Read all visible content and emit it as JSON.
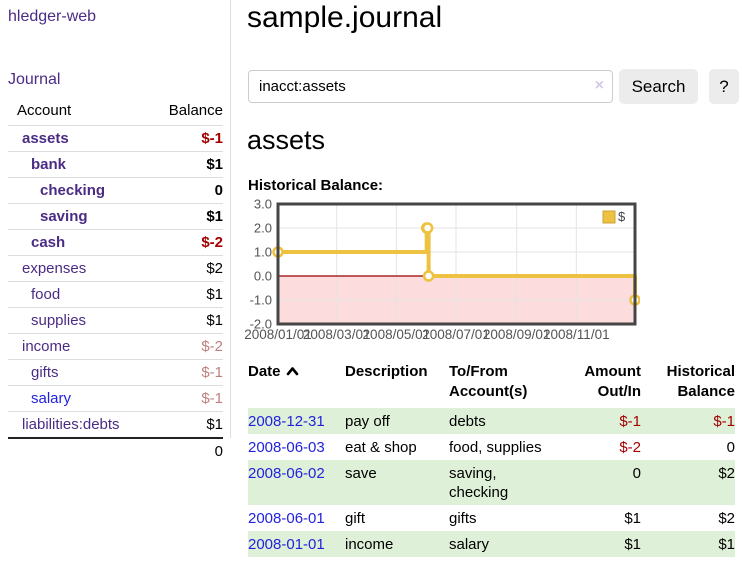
{
  "brand": "hledger-web",
  "nav": {
    "journal": "Journal"
  },
  "sidebar": {
    "header": {
      "account": "Account",
      "balance": "Balance"
    },
    "rows": [
      {
        "name": "assets",
        "balance": "$-1",
        "depth": 0,
        "bold": true,
        "balance_cls": "neg-strong",
        "link": "purple"
      },
      {
        "name": "bank",
        "balance": "$1",
        "depth": 1,
        "bold": true,
        "balance_cls": "",
        "link": "purple"
      },
      {
        "name": "checking",
        "balance": "0",
        "depth": 2,
        "bold": true,
        "balance_cls": "",
        "link": "purple"
      },
      {
        "name": "saving",
        "balance": "$1",
        "depth": 2,
        "bold": true,
        "balance_cls": "",
        "link": "purple"
      },
      {
        "name": "cash",
        "balance": "$-2",
        "depth": 1,
        "bold": true,
        "balance_cls": "neg-strong",
        "link": "purple"
      },
      {
        "name": "expenses",
        "balance": "$2",
        "depth": 0,
        "bold": false,
        "balance_cls": "",
        "link": "purple"
      },
      {
        "name": "food",
        "balance": "$1",
        "depth": 1,
        "bold": false,
        "balance_cls": "",
        "link": "purple"
      },
      {
        "name": "supplies",
        "balance": "$1",
        "depth": 1,
        "bold": false,
        "balance_cls": "",
        "link": "purple"
      },
      {
        "name": "income",
        "balance": "$-2",
        "depth": 0,
        "bold": false,
        "balance_cls": "neg-dim",
        "link": "purple"
      },
      {
        "name": "gifts",
        "balance": "$-1",
        "depth": 1,
        "bold": false,
        "balance_cls": "neg-dim",
        "link": "purple"
      },
      {
        "name": "salary",
        "balance": "$-1",
        "depth": 1,
        "bold": false,
        "balance_cls": "neg-dim",
        "link": "blue"
      },
      {
        "name": "liabilities:debts",
        "balance": "$1",
        "depth": 0,
        "bold": false,
        "balance_cls": "",
        "link": "purple"
      }
    ],
    "total": "0"
  },
  "page": {
    "title": "sample.journal",
    "account_heading": "assets",
    "chart_heading": "Historical Balance:"
  },
  "search": {
    "query": "inacct:assets",
    "clear": "×",
    "search_button": "Search",
    "help_button": "?"
  },
  "register": {
    "headers": {
      "date": "Date",
      "description": "Description",
      "accounts": [
        "To/From",
        "Account(s)"
      ],
      "amount": [
        "Amount",
        "Out/In"
      ],
      "balance": [
        "Historical",
        "Balance"
      ]
    },
    "rows": [
      {
        "date": "2008-12-31",
        "description": "pay off",
        "accounts": "debts",
        "amount": "$-1",
        "amount_cls": "neg",
        "balance": "$-1",
        "balance_cls": "neg"
      },
      {
        "date": "2008-06-03",
        "description": "eat & shop",
        "accounts": "food, supplies",
        "amount": "$-2",
        "amount_cls": "neg",
        "balance": "0",
        "balance_cls": ""
      },
      {
        "date": "2008-06-02",
        "description": "save",
        "accounts": "saving, checking",
        "amount": "0",
        "amount_cls": "",
        "balance": "$2",
        "balance_cls": ""
      },
      {
        "date": "2008-06-01",
        "description": "gift",
        "accounts": "gifts",
        "amount": "$1",
        "amount_cls": "",
        "balance": "$2",
        "balance_cls": ""
      },
      {
        "date": "2008-01-01",
        "description": "income",
        "accounts": "salary",
        "amount": "$1",
        "amount_cls": "",
        "balance": "$1",
        "balance_cls": ""
      }
    ]
  },
  "chart_data": {
    "type": "line",
    "step": true,
    "title": "Historical Balance:",
    "series": [
      {
        "name": "$",
        "color": "#edc240",
        "points": [
          [
            "2008-01-01",
            1
          ],
          [
            "2008-06-01",
            2
          ],
          [
            "2008-06-02",
            2
          ],
          [
            "2008-06-03",
            0
          ],
          [
            "2008-12-31",
            -1
          ]
        ]
      }
    ],
    "xdomain": [
      "2008-01-01",
      "2008-12-31"
    ],
    "ylim": [
      -2,
      3
    ],
    "yticks": [
      "3.0",
      "2.0",
      "1.0",
      "0.0",
      "-1.0",
      "-2.0"
    ],
    "xticks": [
      "2008/01/01",
      "2008/03/01",
      "2008/05/01",
      "2008/07/01",
      "2008/09/01",
      "2008/11/01"
    ],
    "grid": true,
    "legend": {
      "label": "$",
      "position": "top-right"
    },
    "zero_line_color": "#990000",
    "negative_region_color": "#fcdcdc"
  },
  "colors": {
    "purple": "#4b2c85",
    "blue": "#2222dd",
    "negstrong": "#a40000",
    "negdim": "#bf7f7f",
    "rowgreen": "#dff0d8",
    "lineyellow": "#edc240",
    "zerored": "#990000",
    "negregion": "#fcdcdc",
    "borderlight": "#dddddd",
    "btnbg": "#ececec"
  }
}
